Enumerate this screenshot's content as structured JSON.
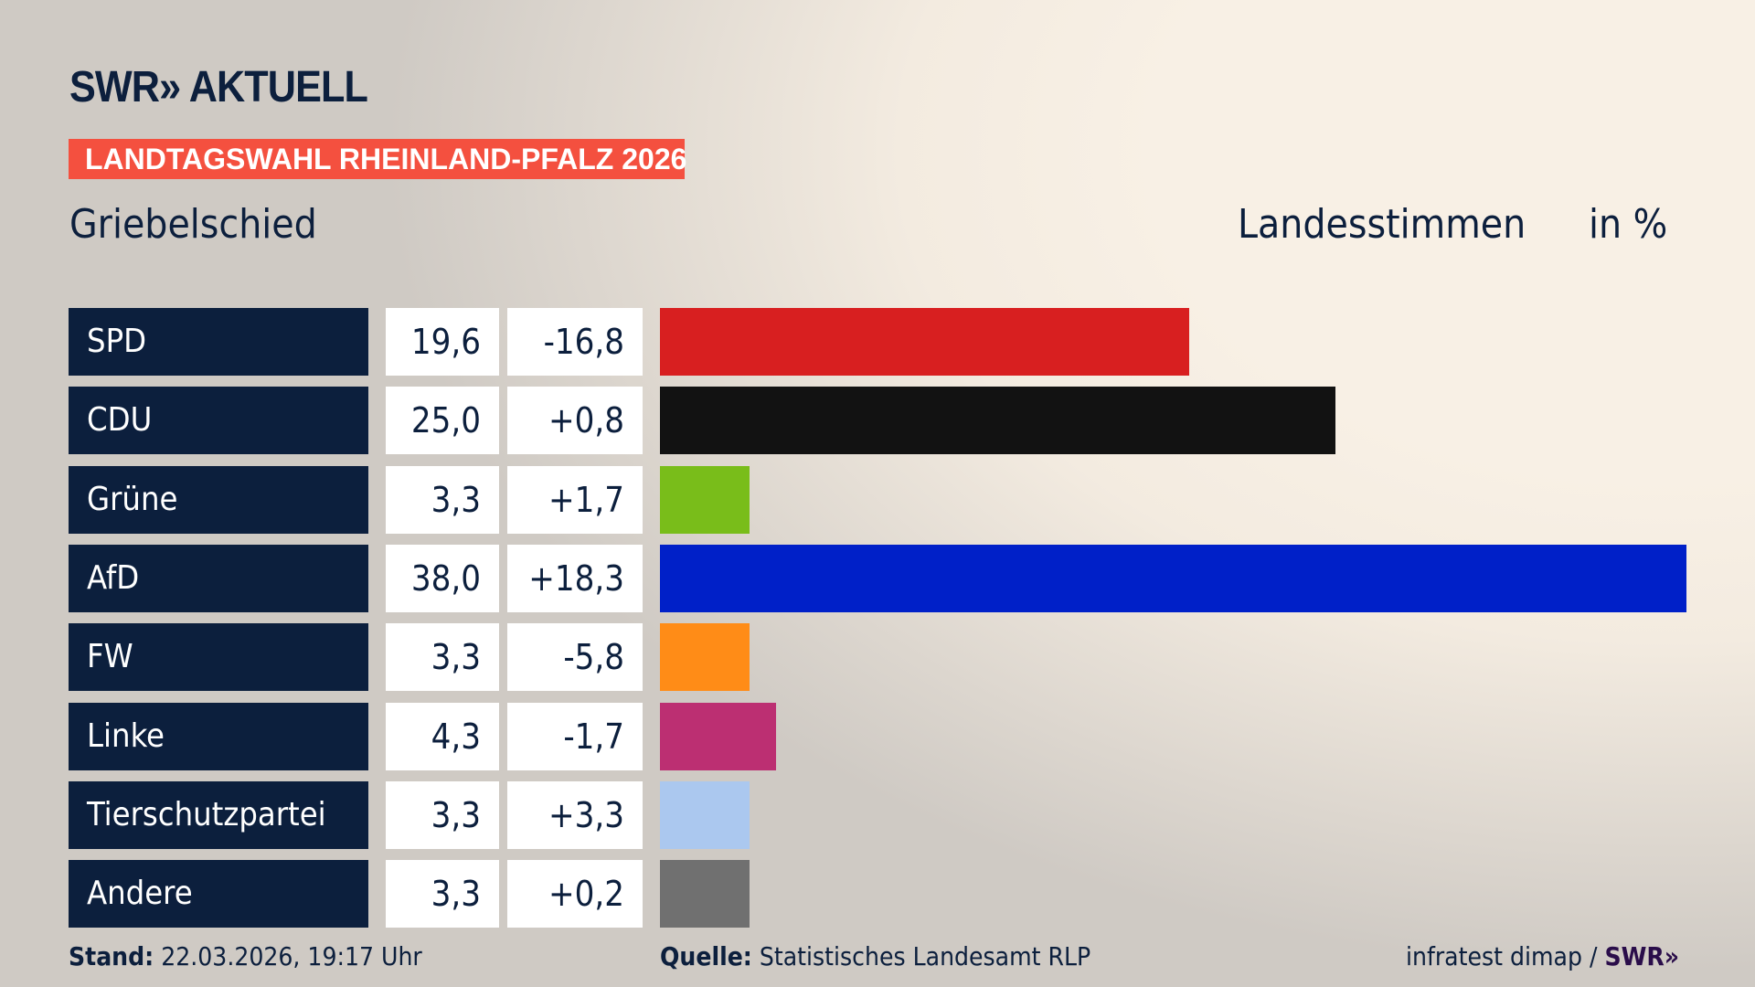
{
  "logo": "SWR» AKTUELL",
  "banner": "LANDTAGSWAHL RHEINLAND-PFALZ 2026",
  "place": "Griebelschied",
  "header_vote": "Landesstimmen",
  "header_unit": "in %",
  "chart_data": {
    "type": "bar",
    "title": "Griebelschied – Landesstimmen in %",
    "categories": [
      "SPD",
      "CDU",
      "Grüne",
      "AfD",
      "FW",
      "Linke",
      "Tierschutzpartei",
      "Andere"
    ],
    "values": [
      19.6,
      25.0,
      3.3,
      38.0,
      3.3,
      4.3,
      3.3,
      3.3
    ],
    "value_labels": [
      "19,6",
      "25,0",
      "3,3",
      "38,0",
      "3,3",
      "4,3",
      "3,3",
      "3,3"
    ],
    "diff_labels": [
      "-16,8",
      "+0,8",
      "+1,7",
      "+18,3",
      "-5,8",
      "-1,7",
      "+3,3",
      "+0,2"
    ],
    "colors": [
      "#d81f20",
      "#121212",
      "#79bd1a",
      "#0020c8",
      "#ff8c17",
      "#bc2f72",
      "#abc8ef",
      "#707070"
    ],
    "xlim": [
      0,
      38
    ]
  },
  "footer": {
    "stand_label": "Stand:",
    "stand_value": "22.03.2026, 19:17 Uhr",
    "source_label": "Quelle:",
    "source_value": "Statistisches Landesamt RLP",
    "credit": "infratest dimap /",
    "credit_logo": "SWR»"
  }
}
